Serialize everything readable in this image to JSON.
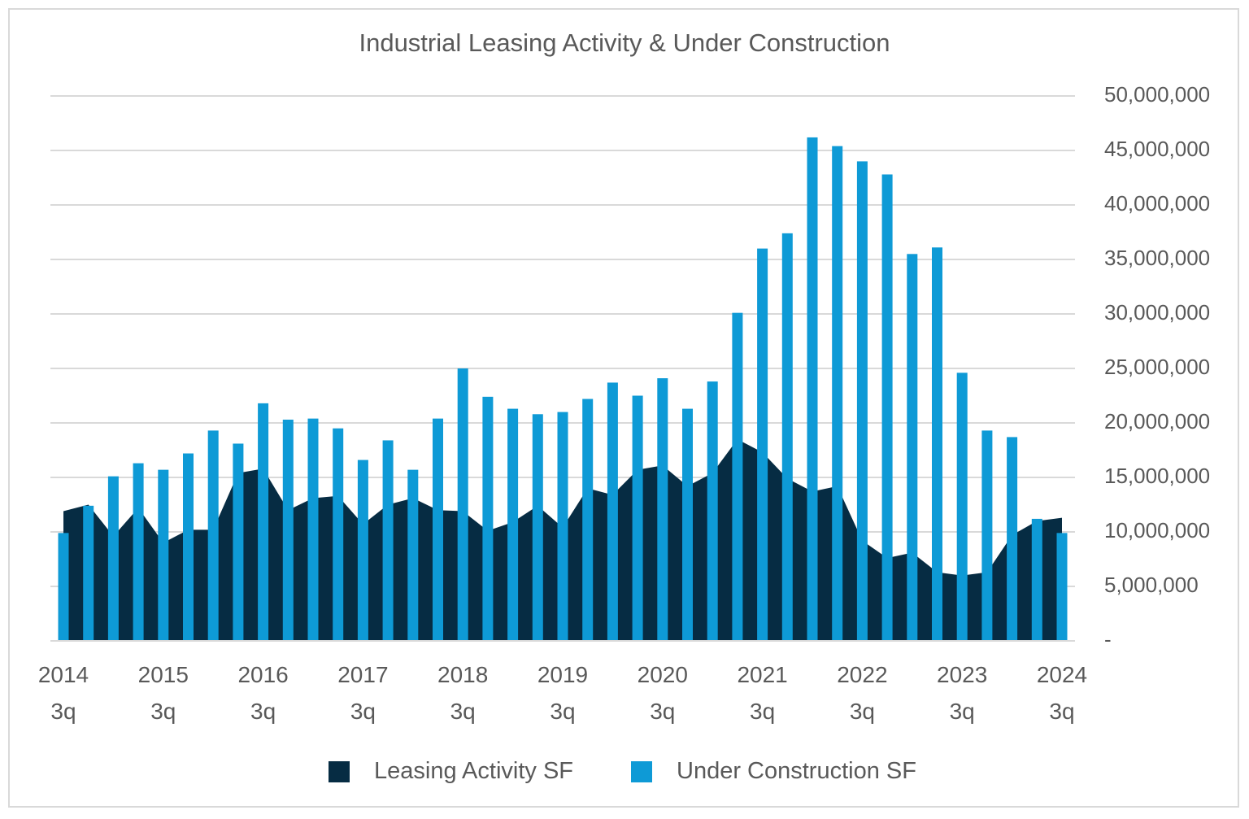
{
  "chart_data": {
    "type": "bar-area",
    "title": "Industrial Leasing Activity & Under Construction",
    "categories": [
      "2014 3q",
      null,
      null,
      null,
      "2015 3q",
      null,
      null,
      null,
      "2016 3q",
      null,
      null,
      null,
      "2017 3q",
      null,
      null,
      null,
      "2018 3q",
      null,
      null,
      null,
      "2019 3q",
      null,
      null,
      null,
      "2020 3q",
      null,
      null,
      null,
      "2021 3q",
      null,
      null,
      null,
      "2022 3q",
      null,
      null,
      null,
      "2023 3q",
      null,
      null,
      null,
      "2024 3q"
    ],
    "series": [
      {
        "name": "Leasing Activity SF",
        "color": "#062c43",
        "kind": "area",
        "values": [
          11900000,
          12500000,
          9600000,
          12200000,
          9000000,
          10200000,
          10200000,
          15400000,
          15800000,
          12000000,
          13100000,
          13300000,
          10700000,
          12500000,
          13100000,
          12000000,
          11900000,
          10100000,
          10900000,
          12400000,
          10400000,
          14000000,
          13400000,
          15700000,
          16100000,
          14200000,
          15400000,
          18500000,
          17300000,
          14900000,
          13700000,
          14200000,
          9200000,
          7600000,
          8100000,
          6300000,
          6000000,
          6300000,
          9700000,
          11000000,
          11300000
        ]
      },
      {
        "name": "Under Construction SF",
        "color": "#0e9ad6",
        "kind": "bar",
        "values": [
          9900000,
          12400000,
          15100000,
          16300000,
          15700000,
          17200000,
          19300000,
          18100000,
          21800000,
          20300000,
          20400000,
          19500000,
          16600000,
          18400000,
          15700000,
          20400000,
          25000000,
          22400000,
          21300000,
          20800000,
          21000000,
          22200000,
          23700000,
          22500000,
          24100000,
          21300000,
          23800000,
          30100000,
          36000000,
          37400000,
          46200000,
          45400000,
          44000000,
          42800000,
          35500000,
          36100000,
          24600000,
          19300000,
          18700000,
          11200000,
          9900000
        ]
      }
    ],
    "ylim": [
      0,
      50000000
    ],
    "yticks": [
      {
        "value": 0,
        "label": "-"
      },
      {
        "value": 5000000,
        "label": "5,000,000"
      },
      {
        "value": 10000000,
        "label": "10,000,000"
      },
      {
        "value": 15000000,
        "label": "15,000,000"
      },
      {
        "value": 20000000,
        "label": "20,000,000"
      },
      {
        "value": 25000000,
        "label": "25,000,000"
      },
      {
        "value": 30000000,
        "label": "30,000,000"
      },
      {
        "value": 35000000,
        "label": "35,000,000"
      },
      {
        "value": 40000000,
        "label": "40,000,000"
      },
      {
        "value": 45000000,
        "label": "45,000,000"
      },
      {
        "value": 50000000,
        "label": "50,000,000"
      }
    ],
    "grid": true,
    "legend": "bottom"
  }
}
